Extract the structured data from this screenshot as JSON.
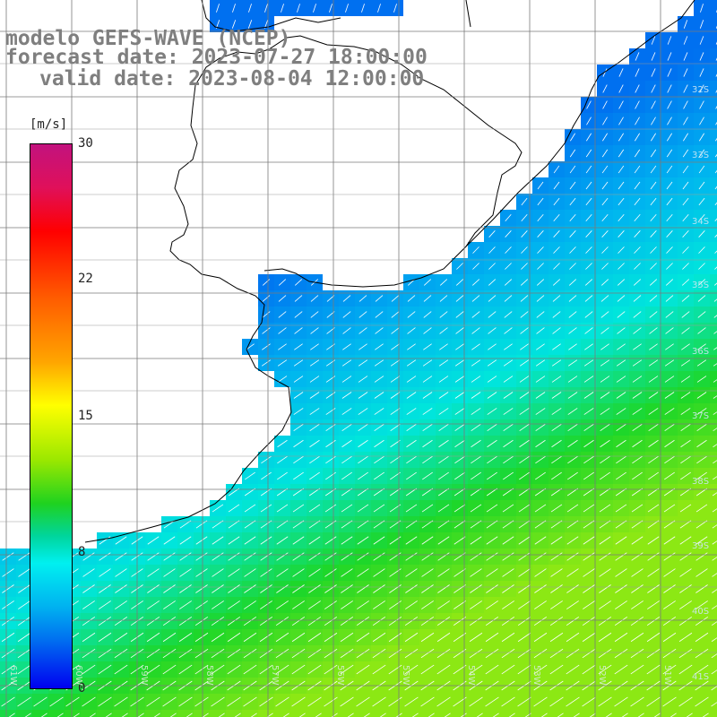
{
  "title": {
    "line1": "modelo GEFS-WAVE (NCEP)",
    "line2": "forecast date: 2023-07-27 18:00:00",
    "line3": "valid date: 2023-08-04 12:00:00"
  },
  "colorbar": {
    "unit": "[m/s]",
    "ticks": [
      "30",
      "22",
      "15",
      "8",
      "0"
    ],
    "colors": [
      "#c2127e",
      "#ff0000",
      "#ffa500",
      "#ffff00",
      "#1fd21f",
      "#00f0f0",
      "#0070f0",
      "#0000f0"
    ]
  },
  "lat_labels": [
    "32S",
    "33S",
    "34S",
    "35S",
    "36S",
    "37S",
    "38S",
    "39S",
    "40S",
    "41S"
  ],
  "lon_labels": [
    "61W",
    "60W",
    "59W",
    "58W",
    "57W",
    "56W",
    "55W",
    "54W",
    "53W",
    "52W",
    "51W"
  ],
  "map": {
    "field": "wind speed",
    "land_color": "#ffffff",
    "coast_color": "#000000",
    "grid_color": "#7a7a7a"
  }
}
